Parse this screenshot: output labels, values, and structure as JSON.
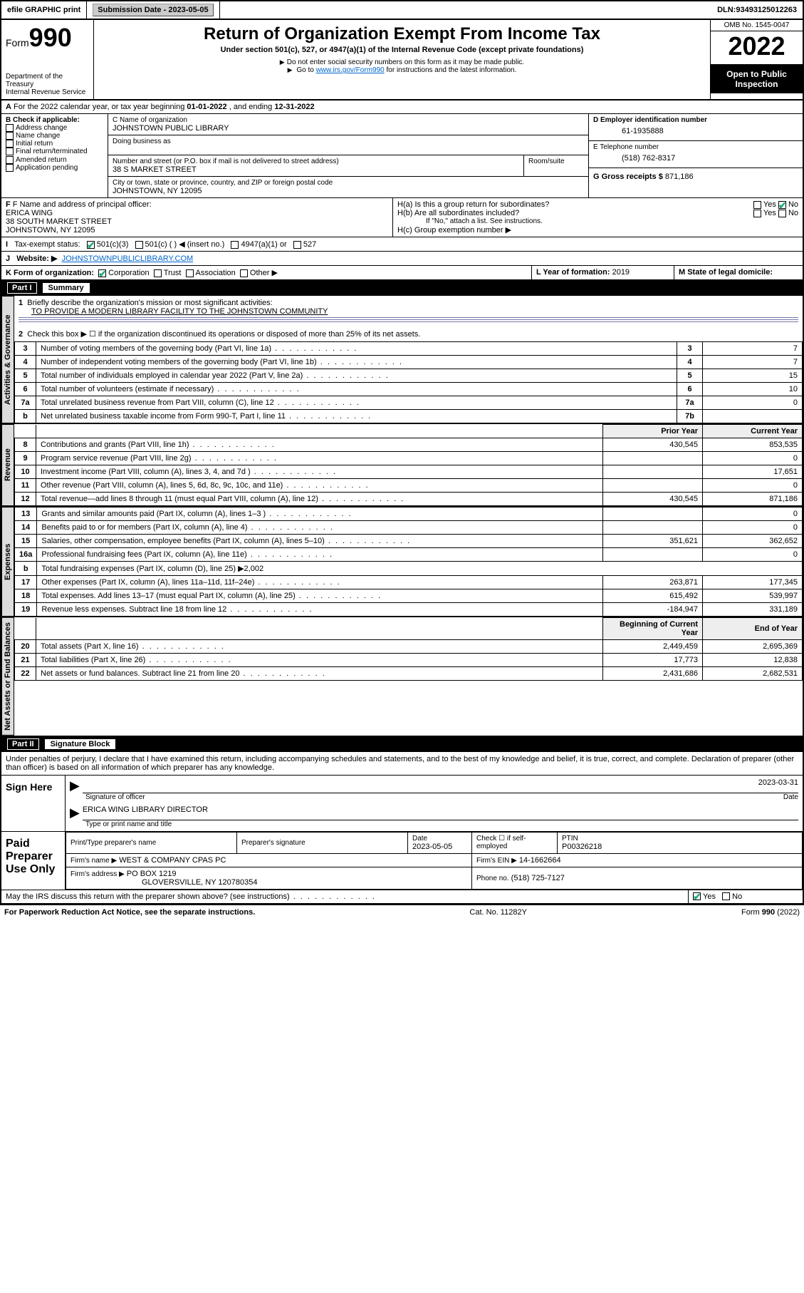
{
  "topbar": {
    "efile": "efile GRAPHIC print",
    "subdate_label": "Submission Date - ",
    "subdate": "2023-05-05",
    "dln_label": "DLN: ",
    "dln": "93493125012263"
  },
  "header": {
    "form_label": "Form",
    "form_num": "990",
    "dept": "Department of the Treasury",
    "irs": "Internal Revenue Service",
    "title": "Return of Organization Exempt From Income Tax",
    "subtitle": "Under section 501(c), 527, or 4947(a)(1) of the Internal Revenue Code (except private foundations)",
    "note1": "Do not enter social security numbers on this form as it may be made public.",
    "note2_pre": "Go to ",
    "note2_link": "www.irs.gov/Form990",
    "note2_post": " for instructions and the latest information.",
    "omb": "OMB No. 1545-0047",
    "year": "2022",
    "open": "Open to Public Inspection"
  },
  "lineA": {
    "text_pre": "For the 2022 calendar year, or tax year beginning ",
    "begin": "01-01-2022",
    "text_mid": " , and ending ",
    "end": "12-31-2022"
  },
  "boxB": {
    "label": "B Check if applicable:",
    "opts": [
      "Address change",
      "Name change",
      "Initial return",
      "Final return/terminated",
      "Amended return",
      "Application pending"
    ]
  },
  "boxC": {
    "name_label": "C Name of organization",
    "name": "JOHNSTOWN PUBLIC LIBRARY",
    "dba_label": "Doing business as",
    "addr_label": "Number and street (or P.O. box if mail is not delivered to street address)",
    "room_label": "Room/suite",
    "addr": "38 S MARKET STREET",
    "city_label": "City or town, state or province, country, and ZIP or foreign postal code",
    "city": "JOHNSTOWN, NY  12095"
  },
  "boxD": {
    "label": "D Employer identification number",
    "val": "61-1935888"
  },
  "boxE": {
    "label": "E Telephone number",
    "val": "(518) 762-8317"
  },
  "boxG": {
    "label": "G Gross receipts $",
    "val": "871,186"
  },
  "boxF": {
    "label": "F Name and address of principal officer:",
    "name": "ERICA WING",
    "addr1": "38 SOUTH MARKET STREET",
    "addr2": "JOHNSTOWN, NY  12095"
  },
  "boxH": {
    "ha": "H(a)  Is this a group return for subordinates?",
    "hb": "H(b)  Are all subordinates included?",
    "note": "If \"No,\" attach a list. See instructions.",
    "hc": "H(c)  Group exemption number ▶",
    "yes": "Yes",
    "no": "No"
  },
  "lineI": {
    "label": "Tax-exempt status:",
    "o1": "501(c)(3)",
    "o2": "501(c) (  ) ◀ (insert no.)",
    "o3": "4947(a)(1) or",
    "o4": "527"
  },
  "lineJ": {
    "label": "Website: ▶",
    "val": "JOHNSTOWNPUBLICLIBRARY.COM"
  },
  "lineK": {
    "label": "K Form of organization:",
    "opts": [
      "Corporation",
      "Trust",
      "Association",
      "Other ▶"
    ]
  },
  "lineL": {
    "label": "L Year of formation:",
    "val": "2019"
  },
  "lineM": {
    "label": "M State of legal domicile:",
    "val": ""
  },
  "part1": {
    "num": "Part I",
    "title": "Summary"
  },
  "tabs": {
    "ag": "Activities & Governance",
    "rev": "Revenue",
    "exp": "Expenses",
    "nab": "Net Assets or Fund Balances"
  },
  "summary": {
    "l1_label": "Briefly describe the organization's mission or most significant activities:",
    "l1_val": "TO PROVIDE A MODERN LIBRARY FACILITY TO THE JOHNSTOWN COMMUNITY",
    "l2": "Check this box ▶ ☐  if the organization discontinued its operations or disposed of more than 25% of its net assets.",
    "rows_ag": [
      {
        "n": "3",
        "label": "Number of voting members of the governing body (Part VI, line 1a)",
        "k": "3",
        "v": "7"
      },
      {
        "n": "4",
        "label": "Number of independent voting members of the governing body (Part VI, line 1b)",
        "k": "4",
        "v": "7"
      },
      {
        "n": "5",
        "label": "Total number of individuals employed in calendar year 2022 (Part V, line 2a)",
        "k": "5",
        "v": "15"
      },
      {
        "n": "6",
        "label": "Total number of volunteers (estimate if necessary)",
        "k": "6",
        "v": "10"
      },
      {
        "n": "7a",
        "label": "Total unrelated business revenue from Part VIII, column (C), line 12",
        "k": "7a",
        "v": "0"
      },
      {
        "n": "b",
        "label": "Net unrelated business taxable income from Form 990-T, Part I, line 11",
        "k": "7b",
        "v": ""
      }
    ],
    "hdr_prior": "Prior Year",
    "hdr_curr": "Current Year",
    "rows_rev": [
      {
        "n": "8",
        "label": "Contributions and grants (Part VIII, line 1h)",
        "p": "430,545",
        "c": "853,535"
      },
      {
        "n": "9",
        "label": "Program service revenue (Part VIII, line 2g)",
        "p": "",
        "c": "0"
      },
      {
        "n": "10",
        "label": "Investment income (Part VIII, column (A), lines 3, 4, and 7d )",
        "p": "",
        "c": "17,651"
      },
      {
        "n": "11",
        "label": "Other revenue (Part VIII, column (A), lines 5, 6d, 8c, 9c, 10c, and 11e)",
        "p": "",
        "c": "0"
      },
      {
        "n": "12",
        "label": "Total revenue—add lines 8 through 11 (must equal Part VIII, column (A), line 12)",
        "p": "430,545",
        "c": "871,186"
      }
    ],
    "rows_exp": [
      {
        "n": "13",
        "label": "Grants and similar amounts paid (Part IX, column (A), lines 1–3 )",
        "p": "",
        "c": "0"
      },
      {
        "n": "14",
        "label": "Benefits paid to or for members (Part IX, column (A), line 4)",
        "p": "",
        "c": "0"
      },
      {
        "n": "15",
        "label": "Salaries, other compensation, employee benefits (Part IX, column (A), lines 5–10)",
        "p": "351,621",
        "c": "362,652"
      },
      {
        "n": "16a",
        "label": "Professional fundraising fees (Part IX, column (A), line 11e)",
        "p": "",
        "c": "0"
      }
    ],
    "l16b": "Total fundraising expenses (Part IX, column (D), line 25) ▶2,002",
    "rows_exp2": [
      {
        "n": "17",
        "label": "Other expenses (Part IX, column (A), lines 11a–11d, 11f–24e)",
        "p": "263,871",
        "c": "177,345"
      },
      {
        "n": "18",
        "label": "Total expenses. Add lines 13–17 (must equal Part IX, column (A), line 25)",
        "p": "615,492",
        "c": "539,997"
      },
      {
        "n": "19",
        "label": "Revenue less expenses. Subtract line 18 from line 12",
        "p": "-184,947",
        "c": "331,189"
      }
    ],
    "hdr_boy": "Beginning of Current Year",
    "hdr_eoy": "End of Year",
    "rows_na": [
      {
        "n": "20",
        "label": "Total assets (Part X, line 16)",
        "p": "2,449,459",
        "c": "2,695,369"
      },
      {
        "n": "21",
        "label": "Total liabilities (Part X, line 26)",
        "p": "17,773",
        "c": "12,838"
      },
      {
        "n": "22",
        "label": "Net assets or fund balances. Subtract line 21 from line 20",
        "p": "2,431,686",
        "c": "2,682,531"
      }
    ]
  },
  "part2": {
    "num": "Part II",
    "title": "Signature Block"
  },
  "penalties": "Under penalties of perjury, I declare that I have examined this return, including accompanying schedules and statements, and to the best of my knowledge and belief, it is true, correct, and complete. Declaration of preparer (other than officer) is based on all information of which preparer has any knowledge.",
  "sign": {
    "here": "Sign Here",
    "sig_label": "Signature of officer",
    "date_label": "Date",
    "date": "2023-03-31",
    "name": "ERICA WING  LIBRARY DIRECTOR",
    "name_label": "Type or print name and title"
  },
  "paid": {
    "title": "Paid Preparer Use Only",
    "col1": "Print/Type preparer's name",
    "col2": "Preparer's signature",
    "col3": "Date",
    "date": "2023-05-05",
    "check_label": "Check ☐ if self-employed",
    "ptin_label": "PTIN",
    "ptin": "P00326218",
    "firm_label": "Firm's name   ▶",
    "firm": "WEST & COMPANY CPAS PC",
    "ein_label": "Firm's EIN ▶",
    "ein": "14-1662664",
    "addr_label": "Firm's address ▶",
    "addr1": "PO BOX 1219",
    "addr2": "GLOVERSVILLE, NY  120780354",
    "phone_label": "Phone no.",
    "phone": "(518) 725-7127"
  },
  "discuss": {
    "q": "May the IRS discuss this return with the preparer shown above? (see instructions)",
    "yes": "Yes",
    "no": "No"
  },
  "footer": {
    "left": "For Paperwork Reduction Act Notice, see the separate instructions.",
    "mid": "Cat. No. 11282Y",
    "right": "Form 990 (2022)"
  },
  "colors": {
    "link": "#0066cc",
    "check": "#22aa77",
    "hr": "#7788bb",
    "tab_bg": "#dddddd"
  }
}
